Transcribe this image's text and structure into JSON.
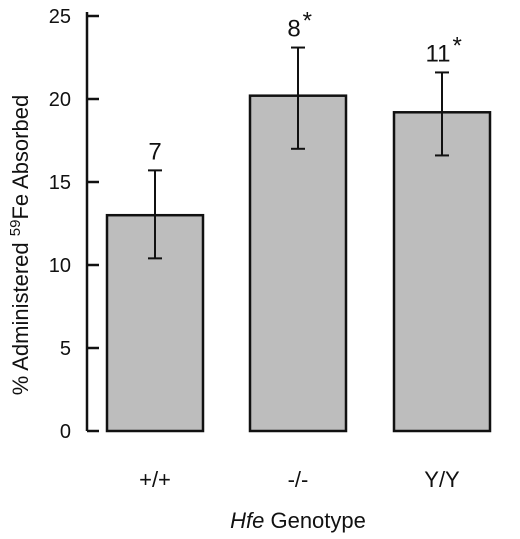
{
  "chart_data": {
    "type": "bar",
    "categories": [
      "+/+",
      "-/-",
      "Y/Y"
    ],
    "values": [
      13,
      20.2,
      19.2
    ],
    "error_low": [
      10.4,
      17,
      16.6
    ],
    "error_high": [
      15.7,
      23.1,
      21.6
    ],
    "data_labels": [
      "7",
      "8",
      "11"
    ],
    "significance_marks": [
      "",
      "*",
      "*"
    ],
    "ylabel_prefix": "% Administered ",
    "ylabel_sup": "59",
    "ylabel_suffix": "Fe Absorbed",
    "xlabel_italic": "Hfe",
    "xlabel_rest": " Genotype",
    "yticks": [
      0,
      5,
      10,
      15,
      20,
      25
    ],
    "ylim": [
      0,
      25
    ],
    "grid": false,
    "bar_color": "#bdbdbd"
  }
}
